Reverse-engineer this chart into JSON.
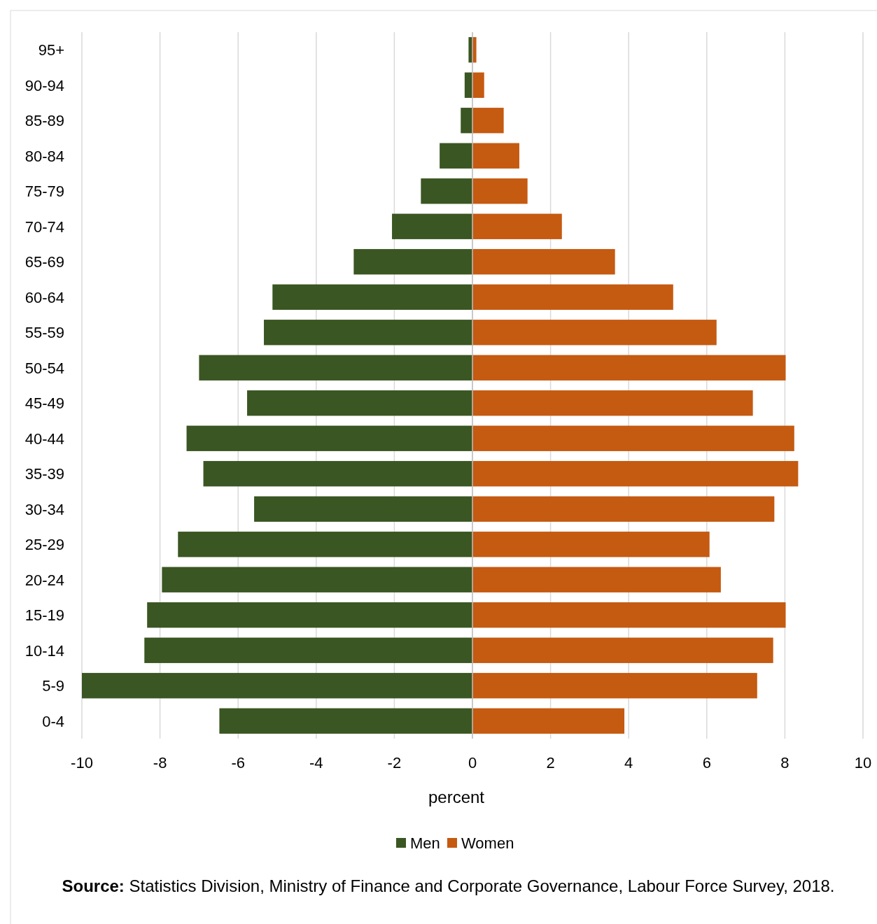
{
  "chart_data": {
    "type": "bar",
    "orientation": "horizontal",
    "stacked": true,
    "categories": [
      "95+",
      "90-94",
      "85-89",
      "80-84",
      "75-79",
      "70-74",
      "65-69",
      "60-64",
      "55-59",
      "50-54",
      "45-49",
      "40-44",
      "35-39",
      "30-34",
      "25-29",
      "20-24",
      "15-19",
      "10-14",
      "5-9",
      "0-4"
    ],
    "series": [
      {
        "name": "Men",
        "color": "#3a5622",
        "values": [
          -0.1,
          -0.2,
          -0.3,
          -0.84,
          -1.32,
          -2.06,
          -3.04,
          -5.12,
          -5.34,
          -7.0,
          -5.77,
          -7.32,
          -6.89,
          -5.59,
          -7.54,
          -7.95,
          -8.33,
          -8.4,
          -10.0,
          -6.48
        ]
      },
      {
        "name": "Women",
        "color": "#c55a11",
        "values": [
          0.1,
          0.3,
          0.8,
          1.2,
          1.41,
          2.29,
          3.65,
          5.14,
          6.25,
          8.02,
          7.18,
          8.24,
          8.34,
          7.73,
          6.07,
          6.36,
          8.02,
          7.7,
          7.29,
          3.89
        ]
      }
    ],
    "xlim": [
      -10,
      10
    ],
    "xticks": [
      -10,
      -8,
      -6,
      -4,
      -2,
      0,
      2,
      4,
      6,
      8,
      10
    ],
    "xlabel": "percent",
    "grid": "x",
    "legend": "bottom",
    "annotations": [
      "Source: Statistics Division, Ministry of Finance and Corporate Governance, Labour Force Survey, 2018."
    ]
  }
}
